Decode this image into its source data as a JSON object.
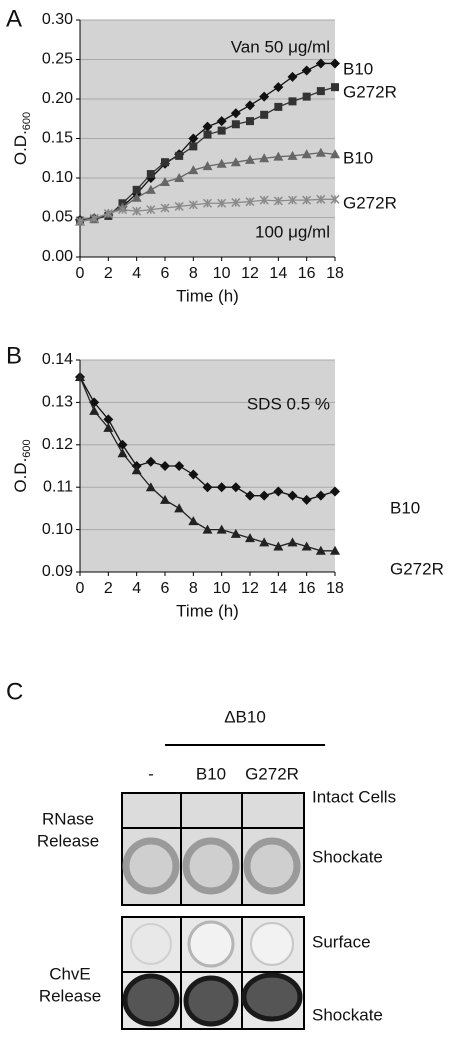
{
  "chart_data": [
    {
      "type": "line",
      "panel": "A",
      "xlabel": "Time (h)",
      "ylabel": "O.D.",
      "ylabel_sub": "600",
      "annotations": [
        "Van 50 μg/ml",
        "100 μg/ml"
      ],
      "x": [
        0,
        1,
        2,
        3,
        4,
        5,
        6,
        7,
        8,
        9,
        10,
        11,
        12,
        13,
        14,
        15,
        16,
        17,
        18
      ],
      "xlim": [
        0,
        18
      ],
      "xticks": [
        0,
        2,
        4,
        6,
        8,
        10,
        12,
        14,
        16,
        18
      ],
      "ylim": [
        0,
        0.3
      ],
      "yticks": [
        {
          "value": 0,
          "label": "0.00"
        },
        0.05,
        {
          "value": 0.1,
          "label": "0.10"
        },
        0.15,
        {
          "value": 0.2,
          "label": "0.20"
        },
        0.25,
        {
          "value": 0.3,
          "label": "0.30"
        }
      ],
      "grid": true,
      "series": [
        {
          "name": "B10",
          "color": "#111111",
          "marker": "diamond",
          "values": [
            0.047,
            0.049,
            0.053,
            0.064,
            0.08,
            0.1,
            0.118,
            0.13,
            0.15,
            0.165,
            0.172,
            0.182,
            0.192,
            0.203,
            0.215,
            0.228,
            0.236,
            0.245,
            0.245
          ]
        },
        {
          "name": "G272R",
          "color": "#333333",
          "marker": "square",
          "values": [
            0.046,
            0.048,
            0.052,
            0.068,
            0.085,
            0.105,
            0.12,
            0.128,
            0.14,
            0.155,
            0.16,
            0.168,
            0.172,
            0.18,
            0.19,
            0.197,
            0.203,
            0.21,
            0.215
          ]
        },
        {
          "name": "B10",
          "color": "#666666",
          "marker": "triangle",
          "values": [
            0.045,
            0.048,
            0.055,
            0.063,
            0.075,
            0.085,
            0.095,
            0.1,
            0.11,
            0.115,
            0.118,
            0.12,
            0.123,
            0.125,
            0.127,
            0.128,
            0.13,
            0.132,
            0.13
          ]
        },
        {
          "name": "G272R",
          "color": "#8a8a8a",
          "marker": "star",
          "values": [
            0.045,
            0.049,
            0.055,
            0.06,
            0.058,
            0.06,
            0.062,
            0.064,
            0.066,
            0.068,
            0.068,
            0.069,
            0.07,
            0.072,
            0.071,
            0.072,
            0.072,
            0.073,
            0.073
          ]
        }
      ]
    },
    {
      "type": "line",
      "panel": "B",
      "xlabel": "Time (h)",
      "ylabel": "O.D.",
      "ylabel_sub": "600",
      "annotations": [
        "SDS 0.5 %"
      ],
      "x": [
        0,
        1,
        2,
        3,
        4,
        5,
        6,
        7,
        8,
        9,
        10,
        11,
        12,
        13,
        14,
        15,
        16,
        17,
        18
      ],
      "xlim": [
        0,
        18
      ],
      "xticks": [
        0,
        2,
        4,
        6,
        8,
        10,
        12,
        14,
        16,
        18
      ],
      "ylim": [
        0.09,
        0.14
      ],
      "yticks": [
        0.09,
        {
          "value": 0.1,
          "label": "0.10"
        },
        0.11,
        0.12,
        0.13,
        0.14
      ],
      "grid": true,
      "series": [
        {
          "name": "B10",
          "color": "#111111",
          "marker": "diamond",
          "values": [
            0.136,
            0.13,
            0.126,
            0.12,
            0.115,
            0.116,
            0.115,
            0.115,
            0.113,
            0.11,
            0.11,
            0.11,
            0.108,
            0.108,
            0.109,
            0.108,
            0.107,
            0.108,
            0.109
          ]
        },
        {
          "name": "G272R",
          "color": "#222222",
          "marker": "triangle",
          "values": [
            0.136,
            0.128,
            0.124,
            0.118,
            0.114,
            0.11,
            0.107,
            0.105,
            0.102,
            0.1,
            0.1,
            0.099,
            0.098,
            0.097,
            0.096,
            0.097,
            0.096,
            0.095,
            0.095
          ]
        }
      ]
    }
  ],
  "panel_c": {
    "panel": "C",
    "group": "ΔB10",
    "columns": [
      "-",
      "B10",
      "G272R"
    ],
    "blocks": [
      {
        "label": [
          "RNase",
          "Release"
        ],
        "rows": [
          "Intact Cells",
          "Shockate"
        ]
      },
      {
        "label": [
          "ChvE",
          "Release"
        ],
        "rows": [
          "Surface",
          "Shockate"
        ]
      }
    ]
  }
}
